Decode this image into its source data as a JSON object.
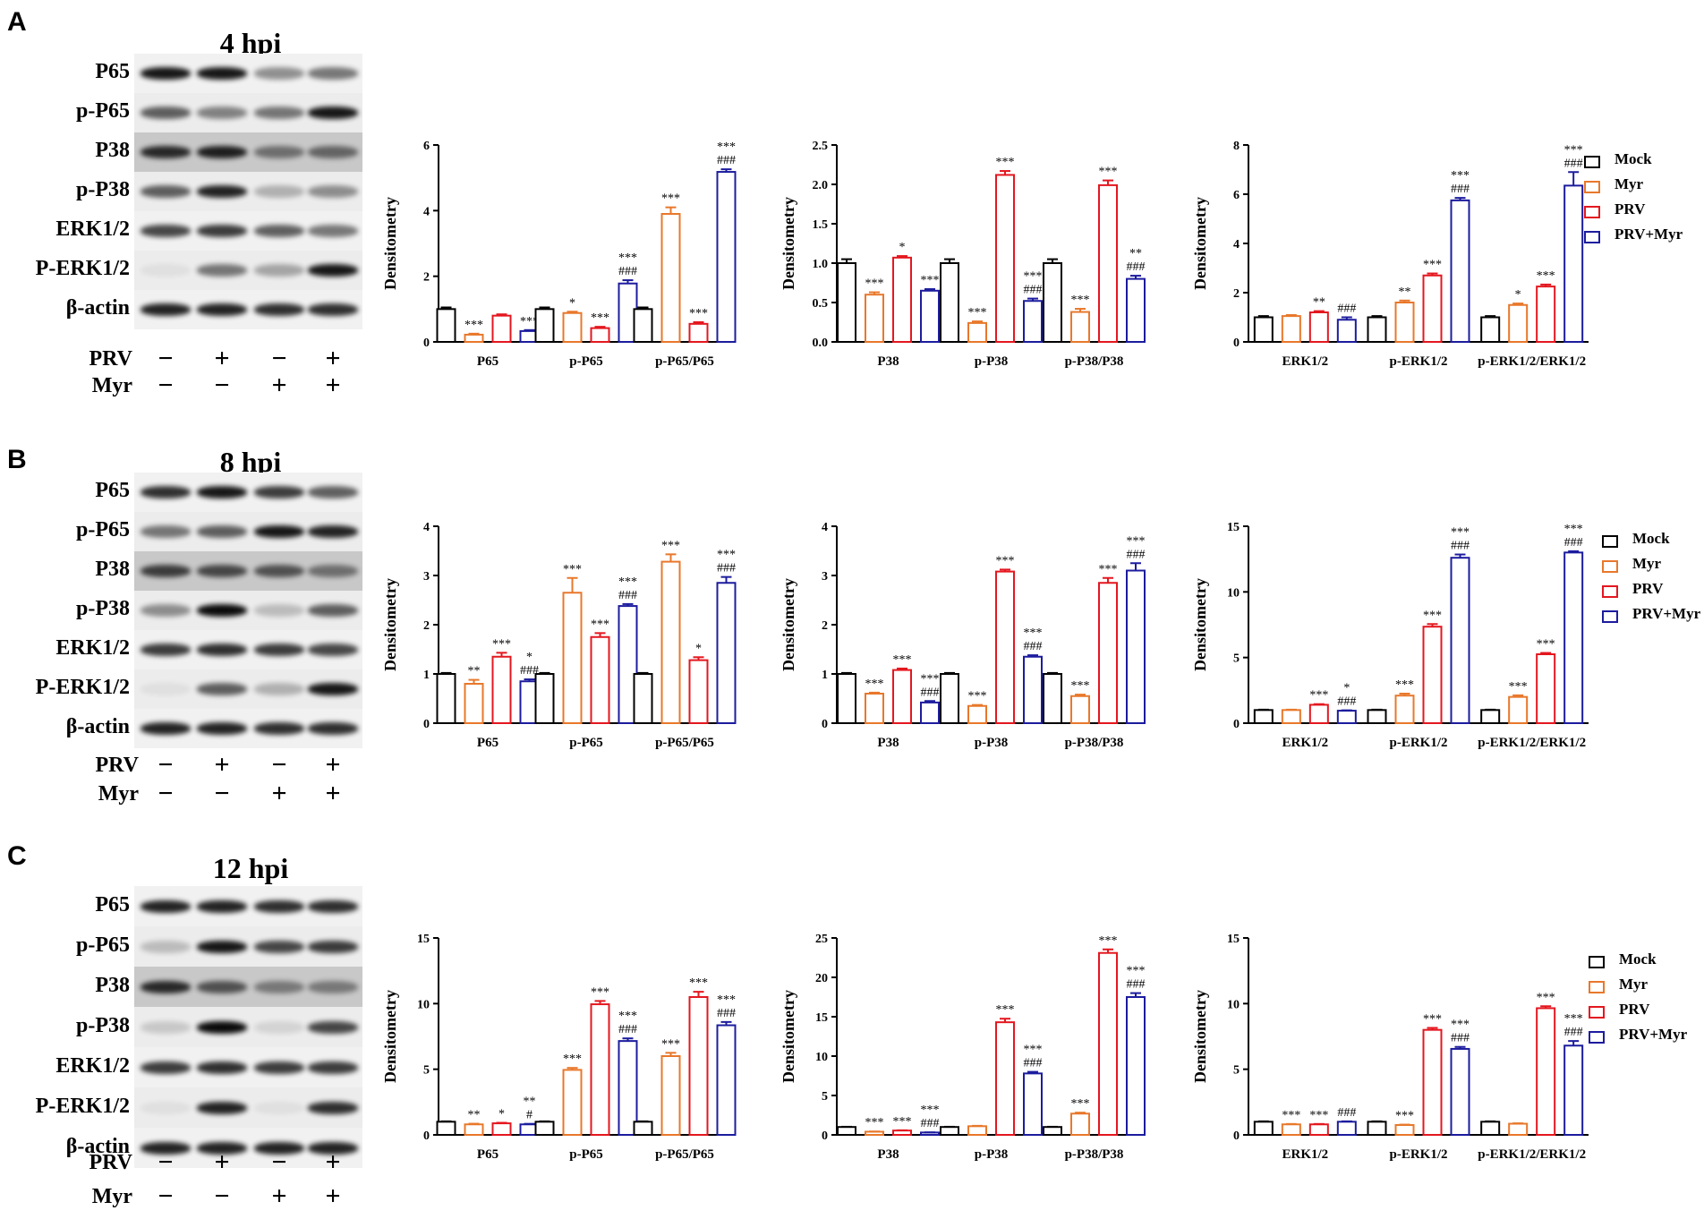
{
  "colors": {
    "Mock": "#000000",
    "Myr": "#e8782b",
    "PRV": "#e4171f",
    "PRV+Myr": "#1c1c9e"
  },
  "legend": [
    "Mock",
    "Myr",
    "PRV",
    "PRV+Myr"
  ],
  "blot_labels": [
    "P65",
    "p-P65",
    "P38",
    "p-P38",
    "ERK1/2",
    "P-ERK1/2",
    "β-actin"
  ],
  "treatment_rows": [
    {
      "label": "PRV",
      "signs": [
        "−",
        "+",
        "−",
        "+"
      ]
    },
    {
      "label": "Myr",
      "signs": [
        "−",
        "−",
        "+",
        "+"
      ]
    }
  ],
  "panels": [
    {
      "letter": "A",
      "blot_title": "4 hpi",
      "band_intensity": [
        [
          0.9,
          0.9,
          0.4,
          0.5
        ],
        [
          0.6,
          0.45,
          0.5,
          0.9
        ],
        [
          0.8,
          0.85,
          0.45,
          0.5
        ],
        [
          0.6,
          0.85,
          0.25,
          0.4
        ],
        [
          0.7,
          0.75,
          0.6,
          0.5
        ],
        [
          0.05,
          0.5,
          0.3,
          0.9
        ],
        [
          0.85,
          0.85,
          0.8,
          0.8
        ]
      ]
    },
    {
      "letter": "B",
      "blot_title": "8 hpi",
      "band_intensity": [
        [
          0.8,
          0.9,
          0.75,
          0.6
        ],
        [
          0.5,
          0.6,
          0.9,
          0.85
        ],
        [
          0.7,
          0.65,
          0.6,
          0.45
        ],
        [
          0.4,
          0.95,
          0.2,
          0.6
        ],
        [
          0.75,
          0.8,
          0.75,
          0.7
        ],
        [
          0.05,
          0.6,
          0.25,
          0.9
        ],
        [
          0.85,
          0.85,
          0.8,
          0.8
        ]
      ]
    },
    {
      "letter": "C",
      "blot_title": "12 hpi",
      "band_intensity": [
        [
          0.85,
          0.85,
          0.8,
          0.8
        ],
        [
          0.2,
          0.9,
          0.7,
          0.75
        ],
        [
          0.8,
          0.6,
          0.4,
          0.4
        ],
        [
          0.15,
          0.95,
          0.1,
          0.7
        ],
        [
          0.75,
          0.8,
          0.75,
          0.75
        ],
        [
          0.05,
          0.85,
          0.05,
          0.8
        ],
        [
          0.85,
          0.85,
          0.85,
          0.85
        ]
      ]
    }
  ],
  "chart_data": [
    {
      "type": "bar",
      "panel": "A",
      "ylabel": "Densitometry",
      "ylim": [
        0,
        6
      ],
      "yticks": [
        "0",
        "2",
        "4",
        "6"
      ],
      "categories": [
        "P65",
        "p-P65",
        "p-P65/P65"
      ],
      "series": [
        {
          "name": "Mock",
          "values": [
            1.0,
            1.0,
            1.0
          ],
          "errors": [
            0.05,
            0.05,
            0.05
          ]
        },
        {
          "name": "Myr",
          "values": [
            0.22,
            0.88,
            3.9
          ],
          "errors": [
            0.03,
            0.04,
            0.2
          ]
        },
        {
          "name": "PRV",
          "values": [
            0.8,
            0.42,
            0.55
          ],
          "errors": [
            0.04,
            0.04,
            0.05
          ]
        },
        {
          "name": "PRV+Myr",
          "values": [
            0.33,
            1.78,
            5.18
          ],
          "errors": [
            0.03,
            0.1,
            0.08
          ]
        }
      ],
      "annotations": [
        [
          "",
          "***",
          "",
          "***"
        ],
        [
          "",
          "*",
          "***",
          "***\n###"
        ],
        [
          "",
          "***",
          "***",
          "***\n###"
        ]
      ]
    },
    {
      "type": "bar",
      "panel": "A",
      "ylabel": "Densitometry",
      "ylim": [
        0,
        2.5
      ],
      "yticks": [
        "0.0",
        "0.5",
        "1.0",
        "1.5",
        "2.0",
        "2.5"
      ],
      "categories": [
        "P38",
        "p-P38",
        "p-P38/P38"
      ],
      "series": [
        {
          "name": "Mock",
          "values": [
            1.0,
            1.0,
            1.0
          ],
          "errors": [
            0.05,
            0.05,
            0.05
          ]
        },
        {
          "name": "Myr",
          "values": [
            0.6,
            0.24,
            0.38
          ],
          "errors": [
            0.03,
            0.02,
            0.04
          ]
        },
        {
          "name": "PRV",
          "values": [
            1.07,
            2.12,
            1.99
          ],
          "errors": [
            0.02,
            0.05,
            0.06
          ]
        },
        {
          "name": "PRV+Myr",
          "values": [
            0.65,
            0.52,
            0.8
          ],
          "errors": [
            0.02,
            0.03,
            0.04
          ]
        }
      ],
      "annotations": [
        [
          "",
          "***",
          "*",
          "***"
        ],
        [
          "",
          "***",
          "***",
          "***\n###"
        ],
        [
          "",
          "***",
          "***",
          "**\n###"
        ]
      ]
    },
    {
      "type": "bar",
      "panel": "A",
      "ylabel": "Densitometry",
      "ylim": [
        0,
        8
      ],
      "yticks": [
        "0",
        "2",
        "4",
        "6",
        "8"
      ],
      "categories": [
        "ERK1/2",
        "p-ERK1/2",
        "p-ERK1/2/ERK1/2"
      ],
      "series": [
        {
          "name": "Mock",
          "values": [
            1.0,
            1.0,
            1.0
          ],
          "errors": [
            0.05,
            0.05,
            0.05
          ]
        },
        {
          "name": "Myr",
          "values": [
            1.05,
            1.6,
            1.5
          ],
          "errors": [
            0.04,
            0.08,
            0.06
          ]
        },
        {
          "name": "PRV",
          "values": [
            1.2,
            2.7,
            2.25
          ],
          "errors": [
            0.05,
            0.08,
            0.08
          ]
        },
        {
          "name": "PRV+Myr",
          "values": [
            0.9,
            5.75,
            6.35
          ],
          "errors": [
            0.1,
            0.1,
            0.55
          ]
        }
      ],
      "annotations": [
        [
          "",
          "",
          "**",
          "###"
        ],
        [
          "",
          "**",
          "***",
          "***\n###"
        ],
        [
          "",
          "*",
          "***",
          "***\n###"
        ]
      ]
    },
    {
      "type": "bar",
      "panel": "B",
      "ylabel": "Densitometry",
      "ylim": [
        0,
        4
      ],
      "yticks": [
        "0",
        "1",
        "2",
        "3",
        "4"
      ],
      "categories": [
        "P65",
        "p-P65",
        "p-P65/P65"
      ],
      "series": [
        {
          "name": "Mock",
          "values": [
            1.0,
            1.0,
            1.0
          ],
          "errors": [
            0.02,
            0.02,
            0.02
          ]
        },
        {
          "name": "Myr",
          "values": [
            0.8,
            2.65,
            3.28
          ],
          "errors": [
            0.08,
            0.3,
            0.15
          ]
        },
        {
          "name": "PRV",
          "values": [
            1.35,
            1.75,
            1.28
          ],
          "errors": [
            0.08,
            0.08,
            0.06
          ]
        },
        {
          "name": "PRV+Myr",
          "values": [
            0.85,
            2.38,
            2.85
          ],
          "errors": [
            0.04,
            0.04,
            0.12
          ]
        }
      ],
      "annotations": [
        [
          "",
          "**",
          "***",
          "*\n###"
        ],
        [
          "",
          "***",
          "***",
          "***\n###"
        ],
        [
          "",
          "***",
          "*",
          "***\n###"
        ]
      ]
    },
    {
      "type": "bar",
      "panel": "B",
      "ylabel": "Densitometry",
      "ylim": [
        0,
        4
      ],
      "yticks": [
        "0",
        "1",
        "2",
        "3",
        "4"
      ],
      "categories": [
        "P38",
        "p-P38",
        "p-P38/P38"
      ],
      "series": [
        {
          "name": "Mock",
          "values": [
            1.0,
            1.0,
            1.0
          ],
          "errors": [
            0.02,
            0.02,
            0.02
          ]
        },
        {
          "name": "Myr",
          "values": [
            0.6,
            0.35,
            0.55
          ],
          "errors": [
            0.02,
            0.02,
            0.03
          ]
        },
        {
          "name": "PRV",
          "values": [
            1.08,
            3.08,
            2.85
          ],
          "errors": [
            0.03,
            0.04,
            0.1
          ]
        },
        {
          "name": "PRV+Myr",
          "values": [
            0.42,
            1.35,
            3.1
          ],
          "errors": [
            0.03,
            0.03,
            0.15
          ]
        }
      ],
      "annotations": [
        [
          "",
          "***",
          "***",
          "***\n###"
        ],
        [
          "",
          "***",
          "***",
          "***\n###"
        ],
        [
          "",
          "***",
          "***",
          "***\n###"
        ]
      ]
    },
    {
      "type": "bar",
      "panel": "B",
      "ylabel": "Densitometry",
      "ylim": [
        0,
        15
      ],
      "yticks": [
        "0",
        "5",
        "10",
        "15"
      ],
      "categories": [
        "ERK1/2",
        "p-ERK1/2",
        "p-ERK1/2/ERK1/2"
      ],
      "series": [
        {
          "name": "Mock",
          "values": [
            1.0,
            1.0,
            1.0
          ],
          "errors": [
            0.03,
            0.03,
            0.03
          ]
        },
        {
          "name": "Myr",
          "values": [
            1.0,
            2.1,
            2.0
          ],
          "errors": [
            0.03,
            0.15,
            0.12
          ]
        },
        {
          "name": "PRV",
          "values": [
            1.4,
            7.35,
            5.25
          ],
          "errors": [
            0.05,
            0.2,
            0.1
          ]
        },
        {
          "name": "PRV+Myr",
          "values": [
            0.95,
            12.6,
            13.0
          ],
          "errors": [
            0.03,
            0.25,
            0.1
          ]
        }
      ],
      "annotations": [
        [
          "",
          "",
          "***",
          "*\n###"
        ],
        [
          "",
          "***",
          "***",
          "***\n###"
        ],
        [
          "",
          "***",
          "***",
          "***\n###"
        ]
      ]
    },
    {
      "type": "bar",
      "panel": "C",
      "ylabel": "Densitometry",
      "ylim": [
        0,
        15
      ],
      "yticks": [
        "0",
        "5",
        "10",
        "15"
      ],
      "categories": [
        "P65",
        "p-P65",
        "p-P65/P65"
      ],
      "series": [
        {
          "name": "Mock",
          "values": [
            1.0,
            1.0,
            1.0
          ],
          "errors": [
            0.03,
            0.03,
            0.03
          ]
        },
        {
          "name": "Myr",
          "values": [
            0.8,
            4.95,
            6.0
          ],
          "errors": [
            0.05,
            0.15,
            0.25
          ]
        },
        {
          "name": "PRV",
          "values": [
            0.88,
            9.95,
            10.5
          ],
          "errors": [
            0.04,
            0.25,
            0.4
          ]
        },
        {
          "name": "PRV+Myr",
          "values": [
            0.8,
            7.15,
            8.35
          ],
          "errors": [
            0.04,
            0.2,
            0.25
          ]
        }
      ],
      "annotations": [
        [
          "",
          "**",
          "*",
          "**\n#"
        ],
        [
          "",
          "***",
          "***",
          "***\n###"
        ],
        [
          "",
          "***",
          "***",
          "***\n###"
        ]
      ]
    },
    {
      "type": "bar",
      "panel": "C",
      "ylabel": "Densitometry",
      "ylim": [
        0,
        25
      ],
      "yticks": [
        "0",
        "5",
        "10",
        "15",
        "20",
        "25"
      ],
      "categories": [
        "P38",
        "p-P38",
        "p-P38/P38"
      ],
      "series": [
        {
          "name": "Mock",
          "values": [
            1.0,
            1.0,
            1.0
          ],
          "errors": [
            0.03,
            0.03,
            0.03
          ]
        },
        {
          "name": "Myr",
          "values": [
            0.4,
            1.1,
            2.7
          ],
          "errors": [
            0.03,
            0.05,
            0.12
          ]
        },
        {
          "name": "PRV",
          "values": [
            0.55,
            14.3,
            23.1
          ],
          "errors": [
            0.03,
            0.45,
            0.45
          ]
        },
        {
          "name": "PRV+Myr",
          "values": [
            0.3,
            7.8,
            17.5
          ],
          "errors": [
            0.02,
            0.2,
            0.5
          ]
        }
      ],
      "annotations": [
        [
          "",
          "***",
          "***",
          "***\n###"
        ],
        [
          "",
          "",
          "***",
          "***\n###"
        ],
        [
          "",
          "***",
          "***",
          "***\n###"
        ]
      ]
    },
    {
      "type": "bar",
      "panel": "C",
      "ylabel": "Densitometry",
      "ylim": [
        0,
        15
      ],
      "yticks": [
        "0",
        "5",
        "10",
        "15"
      ],
      "categories": [
        "ERK1/2",
        "p-ERK1/2",
        "p-ERK1/2/ERK1/2"
      ],
      "series": [
        {
          "name": "Mock",
          "values": [
            1.0,
            1.0,
            1.0
          ],
          "errors": [
            0.03,
            0.03,
            0.03
          ]
        },
        {
          "name": "Myr",
          "values": [
            0.8,
            0.75,
            0.85
          ],
          "errors": [
            0.03,
            0.03,
            0.03
          ]
        },
        {
          "name": "PRV",
          "values": [
            0.8,
            8.0,
            9.65
          ],
          "errors": [
            0.03,
            0.15,
            0.15
          ]
        },
        {
          "name": "PRV+Myr",
          "values": [
            1.0,
            6.55,
            6.8
          ],
          "errors": [
            0.03,
            0.15,
            0.35
          ]
        }
      ],
      "annotations": [
        [
          "",
          "***",
          "***",
          "###"
        ],
        [
          "",
          "***",
          "***",
          "***\n###"
        ],
        [
          "",
          "",
          "***",
          "***\n###"
        ]
      ]
    }
  ]
}
